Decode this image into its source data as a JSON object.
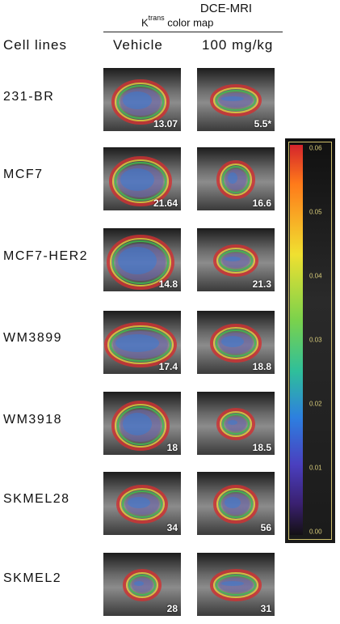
{
  "header": {
    "title": "DCE-MRI",
    "ktrans_main": "K",
    "ktrans_sup": "trans",
    "ktrans_rest": " color map",
    "cell_lines_label": "Cell lines",
    "vehicle_label": "Vehicle",
    "dose_label": "100 mg/kg"
  },
  "rows": [
    {
      "cell_line": "231-BR",
      "vehicle_value": "13.07",
      "dose_value": "5.5*"
    },
    {
      "cell_line": "MCF7",
      "vehicle_value": "21.64",
      "dose_value": "16.6"
    },
    {
      "cell_line": "MCF7-HER2",
      "vehicle_value": "14.8",
      "dose_value": "21.3"
    },
    {
      "cell_line": "WM3899",
      "vehicle_value": "17.4",
      "dose_value": "18.8"
    },
    {
      "cell_line": "WM3918",
      "vehicle_value": "18",
      "dose_value": "18.5"
    },
    {
      "cell_line": "SKMEL28",
      "vehicle_value": "34",
      "dose_value": "56"
    },
    {
      "cell_line": "SKMEL2",
      "vehicle_value": "28",
      "dose_value": "31"
    }
  ],
  "colorbar": {
    "ticks": [
      "0.06",
      "0.05",
      "0.04",
      "0.03",
      "0.02",
      "0.01",
      "0.00"
    ]
  }
}
